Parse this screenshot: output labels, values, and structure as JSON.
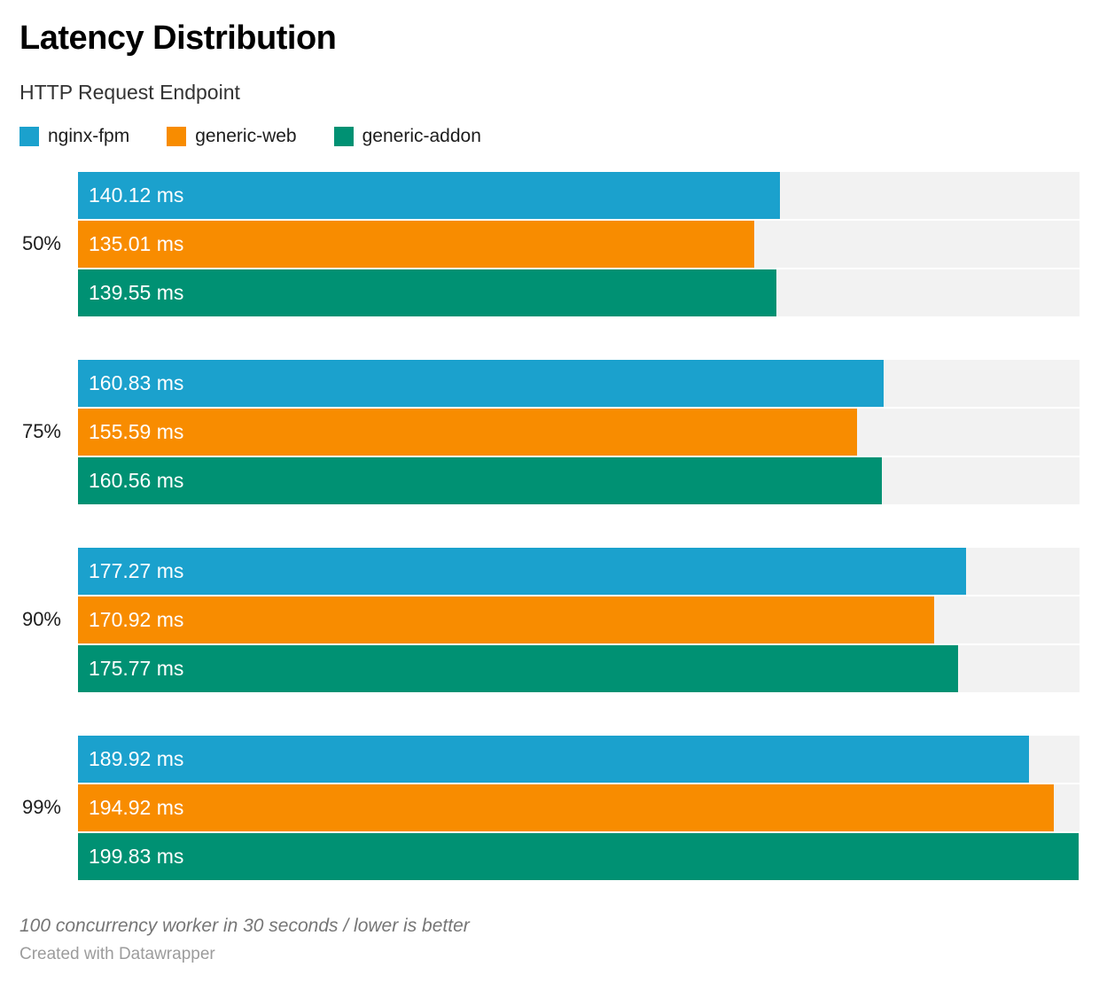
{
  "header": {
    "title": "Latency Distribution",
    "subtitle": "HTTP Request Endpoint"
  },
  "chart_data": {
    "type": "bar",
    "orientation": "horizontal",
    "grouped": true,
    "title": "Latency Distribution",
    "subtitle": "HTTP Request Endpoint",
    "categories": [
      "50%",
      "75%",
      "90%",
      "99%"
    ],
    "series": [
      {
        "name": "nginx-fpm",
        "color": "#1BA1CD",
        "values": [
          140.12,
          160.83,
          177.27,
          189.92
        ]
      },
      {
        "name": "generic-web",
        "color": "#F88C00",
        "values": [
          135.01,
          155.59,
          170.92,
          194.92
        ]
      },
      {
        "name": "generic-addon",
        "color": "#009173",
        "values": [
          139.55,
          160.56,
          175.77,
          199.83
        ]
      }
    ],
    "value_suffix": " ms",
    "value_decimals": 2,
    "value_label_position": "inside-left",
    "xlim": [
      0,
      200
    ],
    "grid": false,
    "legend_position": "top",
    "track_color": "#F2F2F2",
    "label_color": "#FFFFFF"
  },
  "footer": {
    "note": "100 concurrency worker in 30 seconds / lower is better",
    "attribution": "Created with Datawrapper"
  }
}
